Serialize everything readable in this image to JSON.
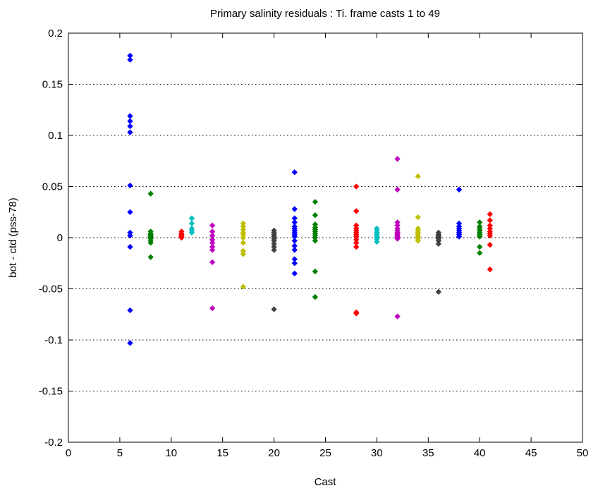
{
  "chart_data": {
    "type": "scatter",
    "title": "Primary salinity residuals : Ti. frame casts 1 to 49",
    "xlabel": "Cast",
    "ylabel": "bot - ctd (pss-78)",
    "xlim": [
      0,
      50
    ],
    "ylim": [
      -0.2,
      0.2
    ],
    "xticks": [
      "0",
      "5",
      "10",
      "15",
      "20",
      "25",
      "30",
      "35",
      "40",
      "45",
      "50"
    ],
    "yticks": [
      "0.2",
      "0.15",
      "0.1",
      "0.05",
      "0",
      "-0.05",
      "-0.1",
      "-0.15",
      "-0.2"
    ],
    "ytick_values": [
      0.2,
      0.15,
      0.1,
      0.05,
      0,
      -0.05,
      -0.1,
      -0.15,
      -0.2
    ],
    "xtick_values": [
      0,
      5,
      10,
      15,
      20,
      25,
      30,
      35,
      40,
      45,
      50
    ],
    "ygrid": "dotted",
    "marker": "diamond",
    "series": [
      {
        "cast": 6,
        "color": "#0000ff",
        "values": [
          0.178,
          0.174,
          0.119,
          0.114,
          0.109,
          0.103,
          0.051,
          0.025,
          0.005,
          0.002,
          -0.009,
          -0.071,
          -0.103
        ]
      },
      {
        "cast": 8,
        "color": "#008000",
        "values": [
          0.043,
          0.006,
          0.004,
          0.003,
          0.002,
          0.001,
          0.0,
          -0.001,
          -0.003,
          -0.005,
          -0.019
        ]
      },
      {
        "cast": 11,
        "color": "#ff0000",
        "values": [
          0.006,
          0.004,
          0.003,
          0.002,
          0.001,
          0.0
        ]
      },
      {
        "cast": 12,
        "color": "#00bfbf",
        "values": [
          0.019,
          0.014,
          0.009,
          0.007,
          0.005
        ]
      },
      {
        "cast": 14,
        "color": "#bf00bf",
        "values": [
          0.012,
          0.006,
          0.002,
          -0.002,
          -0.005,
          -0.009,
          -0.012,
          -0.024,
          -0.069
        ]
      },
      {
        "cast": 17,
        "color": "#bfbf00",
        "values": [
          0.014,
          0.011,
          0.008,
          0.005,
          0.003,
          0.0,
          -0.005,
          -0.013,
          -0.016,
          -0.048
        ]
      },
      {
        "cast": 20,
        "color": "#404040",
        "values": [
          0.007,
          0.005,
          0.003,
          0.001,
          -0.001,
          -0.003,
          -0.006,
          -0.009,
          -0.012,
          -0.07
        ]
      },
      {
        "cast": 22,
        "color": "#0000ff",
        "values": [
          0.064,
          0.028,
          0.019,
          0.015,
          0.011,
          0.009,
          0.007,
          0.005,
          0.003,
          0.001,
          -0.003,
          -0.008,
          -0.012,
          -0.021,
          -0.025,
          -0.035
        ]
      },
      {
        "cast": 24,
        "color": "#008000",
        "values": [
          0.035,
          0.022,
          0.013,
          0.01,
          0.008,
          0.006,
          0.004,
          0.002,
          0.0,
          -0.003,
          -0.033,
          -0.058
        ]
      },
      {
        "cast": 28,
        "color": "#ff0000",
        "values": [
          0.05,
          0.026,
          0.012,
          0.009,
          0.007,
          0.005,
          0.003,
          0.001,
          -0.002,
          -0.005,
          -0.009,
          -0.073,
          -0.074
        ]
      },
      {
        "cast": 30,
        "color": "#00bfbf",
        "values": [
          0.009,
          0.007,
          0.005,
          0.003,
          0.001,
          -0.001,
          -0.004
        ]
      },
      {
        "cast": 32,
        "color": "#bf00bf",
        "values": [
          0.077,
          0.047,
          0.015,
          0.012,
          0.009,
          0.007,
          0.005,
          0.004,
          0.003,
          0.002,
          0.001,
          0.0,
          -0.001,
          -0.077
        ]
      },
      {
        "cast": 34,
        "color": "#bfbf00",
        "values": [
          0.06,
          0.02,
          0.009,
          0.007,
          0.005,
          0.003,
          0.001,
          -0.001,
          -0.003
        ]
      },
      {
        "cast": 36,
        "color": "#404040",
        "values": [
          0.005,
          0.003,
          0.002,
          0.001,
          0.0,
          -0.001,
          -0.003,
          -0.006,
          -0.053
        ]
      },
      {
        "cast": 38,
        "color": "#0000ff",
        "values": [
          0.047,
          0.014,
          0.011,
          0.009,
          0.007,
          0.005,
          0.003,
          0.001
        ]
      },
      {
        "cast": 40,
        "color": "#008000",
        "values": [
          0.015,
          0.011,
          0.009,
          0.007,
          0.005,
          0.003,
          0.001,
          -0.009,
          -0.015
        ]
      },
      {
        "cast": 41,
        "color": "#ff0000",
        "values": [
          0.023,
          0.017,
          0.012,
          0.009,
          0.006,
          0.004,
          0.002,
          -0.007,
          -0.031
        ]
      }
    ]
  }
}
